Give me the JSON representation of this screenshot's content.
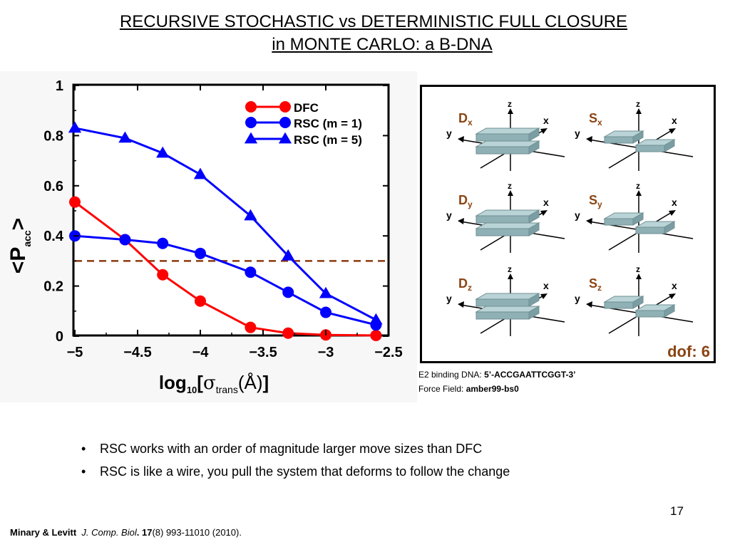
{
  "slide": {
    "title_line1": "RECURSIVE STOCHASTIC vs DETERMINISTIC FULL CLOSURE",
    "title_line2": "in MONTE CARLO: a B-DNA",
    "bullets": [
      "RSC works with an order of magnitude larger move sizes than DFC",
      "RSC is like a wire, you pull the system that deforms to  follow the change"
    ],
    "page_number": "17",
    "citation": {
      "authors": "Minary & Levitt",
      "journal": "J. Comp. Biol",
      "period": ".",
      "volume": "17",
      "rest": "(8) 993-11010  (2010)."
    }
  },
  "info": {
    "binding_label": "E2 binding DNA:",
    "binding_value": "5’-ACCGAATTCGGT-3’",
    "force_label": "Force Field:",
    "force_value": "amber99-bs0"
  },
  "panel": {
    "dof_label": "dof: 6",
    "label_color": "#8B4513",
    "rows": [
      {
        "d_main": "D",
        "d_sub": "x",
        "s_main": "S",
        "s_sub": "x"
      },
      {
        "d_main": "D",
        "d_sub": "y",
        "s_main": "S",
        "s_sub": "y"
      },
      {
        "d_main": "D",
        "d_sub": "z",
        "s_main": "S",
        "s_sub": "z"
      }
    ],
    "axis_labels": {
      "x": "x",
      "y": "y",
      "z": "z"
    }
  },
  "chart_data": {
    "type": "line",
    "xlabel_main": "log",
    "xlabel_sub10": "10",
    "xlabel_bracket_open": "[",
    "xlabel_sigma": "σ",
    "xlabel_sub_trans": "trans",
    "xlabel_unit": "(Å)",
    "xlabel_bracket_close": "]",
    "ylabel_main": "<P",
    "ylabel_sub": "acc",
    "ylabel_close": ">",
    "xlim": [
      -5,
      -2.5
    ],
    "ylim": [
      0,
      1
    ],
    "x_ticks": [
      -5,
      -4.5,
      -4,
      -3.5,
      -3,
      -2.5
    ],
    "x_tick_labels": [
      "−5",
      "−4.5",
      "−4",
      "−3.5",
      "−3",
      "−2.5"
    ],
    "y_ticks": [
      0,
      0.2,
      0.4,
      0.6,
      0.8,
      1
    ],
    "y_tick_labels": [
      "0",
      "0.2",
      "0.4",
      "0.6",
      "0.8",
      "1"
    ],
    "reference_line": {
      "y": 0.3,
      "color": "#8B3A0F"
    },
    "series": [
      {
        "name": "DFC",
        "color": "#ff0000",
        "marker": "circle",
        "x": [
          -5,
          -4.6,
          -4.3,
          -4,
          -3.6,
          -3.3,
          -3,
          -2.6
        ],
        "y": [
          0.535,
          0.385,
          0.245,
          0.14,
          0.035,
          0.012,
          0.005,
          0.003
        ]
      },
      {
        "name": "RSC (m = 1)",
        "color": "#0000ff",
        "marker": "circle",
        "x": [
          -5,
          -4.6,
          -4.3,
          -4,
          -3.6,
          -3.3,
          -3,
          -2.6
        ],
        "y": [
          0.4,
          0.385,
          0.37,
          0.33,
          0.255,
          0.175,
          0.095,
          0.045
        ]
      },
      {
        "name": "RSC (m = 5)",
        "color": "#0000ff",
        "marker": "triangle",
        "x": [
          -5,
          -4.6,
          -4.3,
          -4,
          -3.6,
          -3.3,
          -3,
          -2.6
        ],
        "y": [
          0.83,
          0.79,
          0.73,
          0.645,
          0.48,
          0.32,
          0.17,
          0.065
        ]
      }
    ],
    "legend_position": "top-right"
  }
}
